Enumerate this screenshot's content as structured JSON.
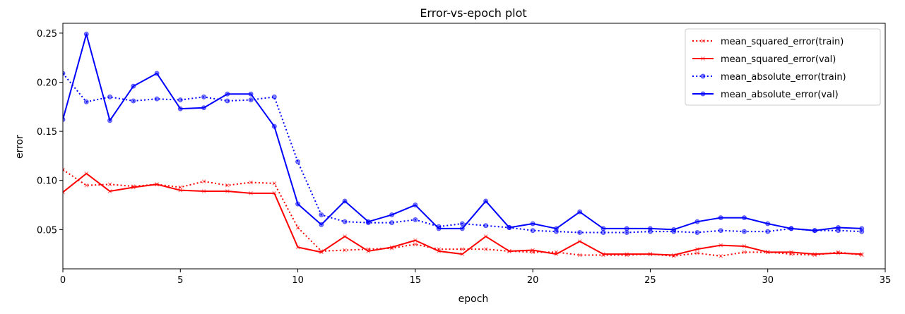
{
  "chart_data": {
    "type": "line",
    "title": "Error-vs-epoch plot",
    "xlabel": "epoch",
    "ylabel": "error",
    "xlim": [
      0,
      35
    ],
    "ylim": [
      0.01,
      0.26
    ],
    "xticks": [
      0,
      5,
      10,
      15,
      20,
      25,
      30,
      35
    ],
    "yticks": [
      0.05,
      0.1,
      0.15,
      0.2,
      0.25
    ],
    "xtick_labels": [
      "0",
      "5",
      "10",
      "15",
      "20",
      "25",
      "30",
      "35"
    ],
    "ytick_labels": [
      "0.05",
      "0.10",
      "0.15",
      "0.20",
      "0.25"
    ],
    "grid": false,
    "legend_position": "top-right",
    "x": [
      0,
      1,
      2,
      3,
      4,
      5,
      6,
      7,
      8,
      9,
      10,
      11,
      12,
      13,
      14,
      15,
      16,
      17,
      18,
      19,
      20,
      21,
      22,
      23,
      24,
      25,
      26,
      27,
      28,
      29,
      30,
      31,
      32,
      33,
      34
    ],
    "series": [
      {
        "name": "mean_squared_error(train)",
        "color": "#ff0000",
        "line_style": "dotted",
        "marker": "x",
        "values": [
          0.111,
          0.095,
          0.096,
          0.094,
          0.096,
          0.093,
          0.099,
          0.095,
          0.098,
          0.097,
          0.052,
          0.028,
          0.029,
          0.03,
          0.031,
          0.035,
          0.03,
          0.03,
          0.03,
          0.028,
          0.027,
          0.027,
          0.024,
          0.024,
          0.024,
          0.025,
          0.023,
          0.026,
          0.023,
          0.027,
          0.027,
          0.025,
          0.024,
          0.027,
          0.024
        ]
      },
      {
        "name": "mean_squared_error(val)",
        "color": "#ff0000",
        "line_style": "solid",
        "marker": "x",
        "values": [
          0.088,
          0.107,
          0.089,
          0.093,
          0.096,
          0.09,
          0.089,
          0.089,
          0.087,
          0.087,
          0.032,
          0.027,
          0.043,
          0.028,
          0.032,
          0.039,
          0.028,
          0.025,
          0.043,
          0.028,
          0.029,
          0.025,
          0.038,
          0.025,
          0.025,
          0.025,
          0.024,
          0.03,
          0.034,
          0.033,
          0.027,
          0.027,
          0.025,
          0.026,
          0.025
        ]
      },
      {
        "name": "mean_absolute_error(train)",
        "color": "#0000ff",
        "line_style": "dotted",
        "marker": "o",
        "values": [
          0.209,
          0.18,
          0.185,
          0.181,
          0.183,
          0.182,
          0.185,
          0.181,
          0.182,
          0.185,
          0.119,
          0.065,
          0.058,
          0.057,
          0.057,
          0.06,
          0.053,
          0.056,
          0.054,
          0.052,
          0.049,
          0.048,
          0.047,
          0.047,
          0.047,
          0.048,
          0.048,
          0.047,
          0.049,
          0.048,
          0.048,
          0.051,
          0.049,
          0.049,
          0.048
        ]
      },
      {
        "name": "mean_absolute_error(val)",
        "color": "#0000ff",
        "line_style": "solid",
        "marker": "o",
        "values": [
          0.162,
          0.249,
          0.161,
          0.196,
          0.209,
          0.173,
          0.174,
          0.188,
          0.188,
          0.155,
          0.076,
          0.055,
          0.079,
          0.058,
          0.065,
          0.075,
          0.051,
          0.051,
          0.079,
          0.052,
          0.056,
          0.051,
          0.068,
          0.051,
          0.051,
          0.051,
          0.05,
          0.058,
          0.062,
          0.062,
          0.056,
          0.051,
          0.049,
          0.052,
          0.051
        ]
      }
    ]
  }
}
